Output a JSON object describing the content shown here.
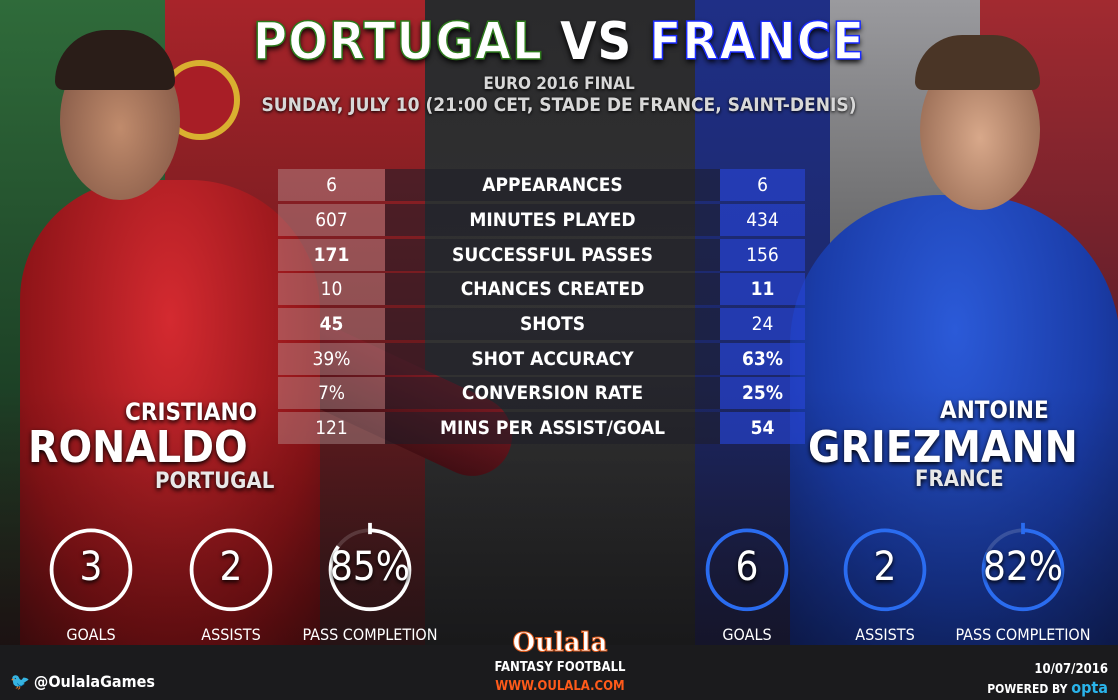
{
  "header": {
    "team_left": "PORTUGAL",
    "vs": "VS",
    "team_right": "FRANCE",
    "event": "EURO 2016 FINAL",
    "details": "SUNDAY, JULY 10 (21:00 CET, STADE DE FRANCE, SAINT-DENIS)"
  },
  "stats": [
    {
      "label": "APPEARANCES",
      "left": "6",
      "right": "6",
      "bold": ""
    },
    {
      "label": "MINUTES PLAYED",
      "left": "607",
      "right": "434",
      "bold": ""
    },
    {
      "label": "SUCCESSFUL PASSES",
      "left": "171",
      "right": "156",
      "bold": "left"
    },
    {
      "label": "CHANCES CREATED",
      "left": "10",
      "right": "11",
      "bold": "right"
    },
    {
      "label": "SHOTS",
      "left": "45",
      "right": "24",
      "bold": "left"
    },
    {
      "label": "SHOT ACCURACY",
      "left": "39%",
      "right": "63%",
      "bold": "right"
    },
    {
      "label": "CONVERSION RATE",
      "left": "7%",
      "right": "25%",
      "bold": "right"
    },
    {
      "label": "MINS PER ASSIST/GOAL",
      "left": "121",
      "right": "54",
      "bold": "right"
    }
  ],
  "players": {
    "left": {
      "first": "CRISTIANO",
      "last": "RONALDO",
      "country": "PORTUGAL",
      "summary": [
        {
          "value": "3",
          "label": "GOALS"
        },
        {
          "value": "2",
          "label": "ASSISTS"
        },
        {
          "value": "85%",
          "label": "PASS COMPLETION",
          "percent": 85
        }
      ]
    },
    "right": {
      "first": "ANTOINE",
      "last": "GRIEZMANN",
      "country": "FRANCE",
      "summary": [
        {
          "value": "6",
          "label": "GOALS"
        },
        {
          "value": "2",
          "label": "ASSISTS"
        },
        {
          "value": "82%",
          "label": "PASS COMPLETION",
          "percent": 82
        }
      ]
    }
  },
  "footer": {
    "twitter_icon": "twitter-bird-icon",
    "twitter": "@OulalaGames",
    "logo": "Oulala",
    "tagline": "FANTASY FOOTBALL",
    "url": "WWW.OULALA.COM",
    "date": "10/07/2016",
    "powered_by": "POWERED BY",
    "provider": "opta"
  },
  "colors": {
    "left_ring": "#ffffff",
    "right_ring": "#2a6cf0",
    "url": "#ff5a1a",
    "opta": "#2ab4ea"
  }
}
